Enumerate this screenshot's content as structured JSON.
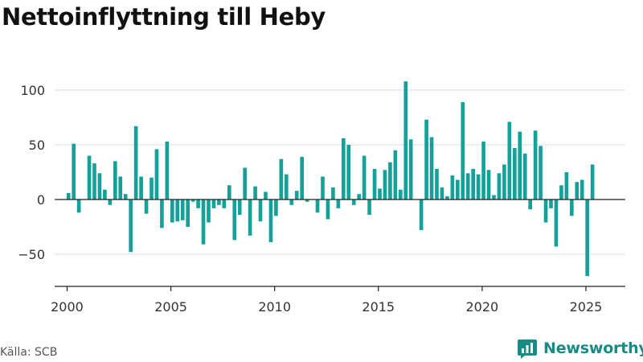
{
  "title": "Nettoinflyttning till Heby",
  "source": "Källa: SCB",
  "brand": {
    "name": "Newsworthy",
    "color": "#178b86"
  },
  "colors": {
    "bar": "#14a19a",
    "grid": "#dddddd",
    "zero_line": "#222222",
    "axis": "#222222"
  },
  "chart_data": {
    "type": "bar",
    "title": "Nettoinflyttning till Heby",
    "xlabel": "",
    "ylabel": "",
    "xlim": [
      1999.4,
      2026.9
    ],
    "ylim": [
      -80,
      118
    ],
    "grid": true,
    "x_ticks": [
      2000,
      2005,
      2010,
      2015,
      2020,
      2025
    ],
    "x_tick_labels": [
      "2000",
      "2005",
      "2010",
      "2015",
      "2020",
      "2025"
    ],
    "y_ticks": [
      100,
      50,
      0,
      -50
    ],
    "y_tick_labels": [
      "100",
      "50",
      "0",
      "−50"
    ],
    "series": [
      {
        "period": "quarterly",
        "start": "2000 Q1",
        "end": "2025 Q2",
        "values": [
          6,
          51,
          -12,
          0,
          40,
          33,
          24,
          9,
          -5,
          35,
          21,
          5,
          -48,
          67,
          21,
          -13,
          20,
          46,
          -26,
          53,
          -21,
          -20,
          -19,
          -25,
          -2,
          -8,
          -41,
          -21,
          -8,
          -5,
          -8,
          13,
          -37,
          -14,
          29,
          -33,
          12,
          -20,
          7,
          -39,
          -15,
          37,
          23,
          -5,
          8,
          39,
          -2,
          0,
          -12,
          21,
          -18,
          11,
          -8,
          56,
          50,
          -5,
          5,
          40,
          -14,
          28,
          10,
          27,
          34,
          45,
          9,
          108,
          55,
          0,
          -28,
          73,
          57,
          28,
          11,
          3,
          22,
          18,
          89,
          24,
          28,
          23,
          53,
          27,
          4,
          24,
          32,
          71,
          47,
          62,
          42,
          -9,
          63,
          49,
          -21,
          -8,
          -43,
          13,
          25,
          -15,
          16,
          18,
          -70,
          32
        ]
      }
    ]
  }
}
